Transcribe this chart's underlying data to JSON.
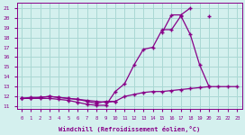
{
  "xlabel": "Windchill (Refroidissement éolien,°C)",
  "xlim": [
    -0.5,
    23.5
  ],
  "ylim": [
    10.7,
    21.5
  ],
  "xticks": [
    0,
    1,
    2,
    3,
    4,
    5,
    6,
    7,
    8,
    9,
    10,
    11,
    12,
    13,
    14,
    15,
    16,
    17,
    18,
    19,
    20,
    21,
    22,
    23
  ],
  "yticks": [
    11,
    12,
    13,
    14,
    15,
    16,
    17,
    18,
    19,
    20,
    21
  ],
  "bg_color": "#d4f0ee",
  "line_color": "#880088",
  "grid_color": "#aad8d4",
  "line1_y": [
    11.8,
    11.9,
    11.9,
    12.0,
    11.9,
    11.8,
    11.7,
    11.5,
    11.3,
    11.5,
    11.5,
    null,
    null,
    null,
    null,
    null,
    null,
    null,
    null,
    null,
    null,
    null,
    null,
    null
  ],
  "line2_y": [
    11.8,
    11.8,
    11.8,
    11.8,
    11.7,
    11.6,
    11.4,
    11.2,
    11.1,
    11.1,
    12.5,
    13.3,
    15.2,
    16.8,
    17.0,
    18.8,
    18.8,
    20.2,
    18.3,
    15.2,
    13.0,
    null,
    null,
    null
  ],
  "line3_y": [
    11.8,
    11.8,
    11.9,
    12.0,
    11.9,
    11.8,
    11.7,
    11.6,
    11.5,
    11.4,
    11.5,
    12.0,
    12.2,
    12.4,
    12.5,
    12.5,
    12.6,
    12.7,
    12.8,
    12.9,
    13.0,
    13.0,
    13.0,
    13.0
  ],
  "line4_y": [
    null,
    null,
    null,
    null,
    null,
    null,
    null,
    null,
    null,
    null,
    null,
    null,
    null,
    null,
    null,
    18.5,
    20.3,
    20.3,
    21.0,
    null,
    20.2,
    null,
    null,
    null
  ]
}
